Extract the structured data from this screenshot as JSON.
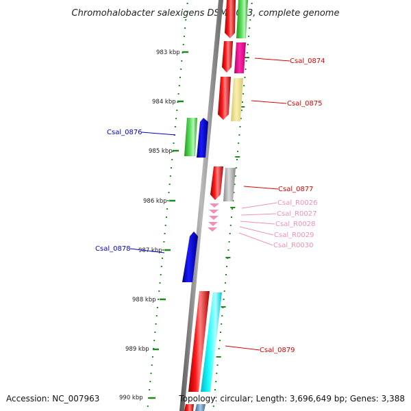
{
  "title": "Chromohalobacter salexigens DSM 3043, complete genome",
  "footer": {
    "accession": "Accession: NC_007963",
    "topology": "Topology: circular; Length: 3,696,649 bp; Genes: 3,388"
  },
  "axis": {
    "ticks": [
      "983 kbp",
      "984 kbp",
      "985 kbp",
      "986 kbp",
      "987 kbp",
      "988 kbp",
      "989 kbp",
      "990 kbp"
    ]
  },
  "colors": {
    "red": "#dd0000",
    "blue": "#0000cc",
    "pink": "#f28fb5",
    "green": "#1a8a1a",
    "backbone": "#777777"
  },
  "gene_labels": [
    {
      "text": "Csal_0874",
      "color": "red"
    },
    {
      "text": "Csal_0875",
      "color": "red"
    },
    {
      "text": "Csal_0876",
      "color": "blue"
    },
    {
      "text": "Csal_0877",
      "color": "red"
    },
    {
      "text": "Csal_R0026",
      "color": "pink"
    },
    {
      "text": "Csal_R0027",
      "color": "pink"
    },
    {
      "text": "Csal_R0028",
      "color": "pink"
    },
    {
      "text": "Csal_R0029",
      "color": "pink"
    },
    {
      "text": "Csal_R0030",
      "color": "pink"
    },
    {
      "text": "Csal_0878",
      "color": "blue"
    },
    {
      "text": "Csal_0879",
      "color": "red"
    }
  ]
}
